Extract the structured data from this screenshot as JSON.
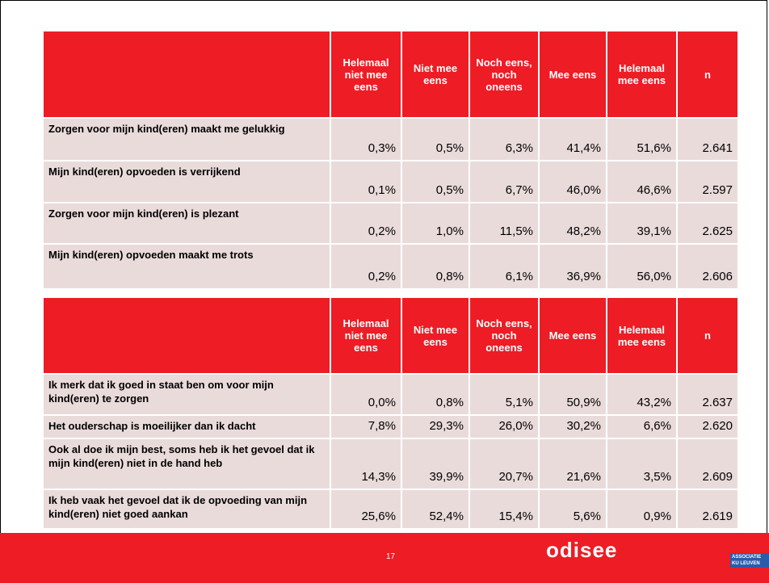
{
  "tables": [
    {
      "header": [
        "",
        "Helemaal niet mee eens",
        "Niet mee eens",
        "Noch eens, noch oneens",
        "Mee eens",
        "Helemaal mee eens",
        "n"
      ],
      "rows": [
        [
          "Zorgen voor mijn kind(eren) maakt me gelukkig",
          "0,3%",
          "0,5%",
          "6,3%",
          "41,4%",
          "51,6%",
          "2.641"
        ],
        [
          "Mijn kind(eren) opvoeden is verrijkend",
          "0,1%",
          "0,5%",
          "6,7%",
          "46,0%",
          "46,6%",
          "2.597"
        ],
        [
          "Zorgen voor mijn kind(eren) is plezant",
          "0,2%",
          "1,0%",
          "11,5%",
          "48,2%",
          "39,1%",
          "2.625"
        ],
        [
          "Mijn kind(eren) opvoeden maakt me trots",
          "0,2%",
          "0,8%",
          "6,1%",
          "36,9%",
          "56,0%",
          "2.606"
        ]
      ]
    },
    {
      "header": [
        "",
        "Helemaal niet mee eens",
        "Niet mee eens",
        "Noch eens, noch oneens",
        "Mee eens",
        "Helemaal mee eens",
        "n"
      ],
      "rows": [
        [
          "Ik merk dat ik goed in staat ben om voor mijn kind(eren) te zorgen",
          "0,0%",
          "0,8%",
          "5,1%",
          "50,9%",
          "43,2%",
          "2.637"
        ],
        [
          "Het ouderschap is moeilijker dan ik dacht",
          "7,8%",
          "29,3%",
          "26,0%",
          "30,2%",
          "6,6%",
          "2.620"
        ],
        [
          "Ook al doe ik mijn best, soms heb ik het gevoel dat ik mijn kind(eren) niet in de hand heb",
          "14,3%",
          "39,9%",
          "20,7%",
          "21,6%",
          "3,5%",
          "2.609"
        ],
        [
          "Ik heb vaak het gevoel dat ik de opvoeding van mijn kind(eren) niet goed aankan",
          "25,6%",
          "52,4%",
          "15,4%",
          "5,6%",
          "0,9%",
          "2.619"
        ]
      ]
    }
  ],
  "footer": {
    "page": "17",
    "logo": "odisee",
    "association": "ASSOCIATIE",
    "university": "KU LEUVEN"
  }
}
